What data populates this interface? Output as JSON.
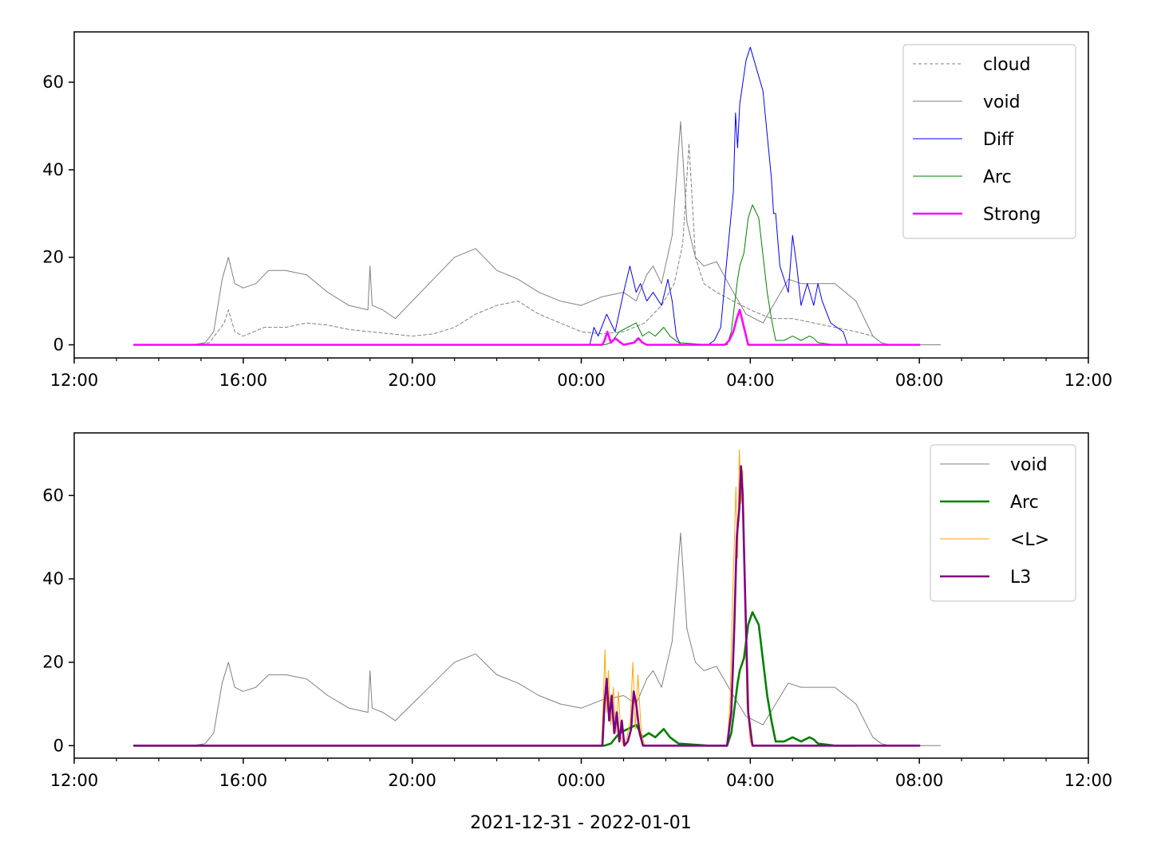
{
  "figure": {
    "xlabel": "2021-12-31 - 2022-01-01"
  },
  "chart_data": [
    {
      "type": "line",
      "title": "",
      "xlabel": "",
      "ylabel": "",
      "x_unit": "hours since 2021-12-31 12:00",
      "xlim": [
        0,
        24
      ],
      "ylim": [
        -3,
        71.5
      ],
      "x_ticks": [
        {
          "pos": 0,
          "label": "12:00"
        },
        {
          "pos": 4,
          "label": "16:00"
        },
        {
          "pos": 8,
          "label": "20:00"
        },
        {
          "pos": 12,
          "label": "00:00"
        },
        {
          "pos": 16,
          "label": "04:00"
        },
        {
          "pos": 20,
          "label": "08:00"
        },
        {
          "pos": 24,
          "label": "12:00"
        }
      ],
      "x_minor_ticks": [
        1,
        2,
        3,
        5,
        6,
        7,
        9,
        10,
        11,
        13,
        14,
        15,
        17,
        18,
        19,
        21,
        22,
        23
      ],
      "y_ticks": [
        0,
        20,
        40,
        60
      ],
      "grid": false,
      "legend_position": "top-right",
      "series": [
        {
          "name": "cloud",
          "color": "#808080",
          "width": 1.0,
          "dash": "4,3",
          "x": [
            1.42,
            2.9,
            3.2,
            3.55,
            3.65,
            3.8,
            4.0,
            4.5,
            5.0,
            5.5,
            6.0,
            6.5,
            7.0,
            7.5,
            8.0,
            8.5,
            9.0,
            9.5,
            10.0,
            10.5,
            11.0,
            11.5,
            12.0,
            12.5,
            13.0,
            13.5,
            13.9,
            14.2,
            14.4,
            14.55,
            14.7,
            14.9,
            15.2,
            15.6,
            16.0,
            16.5,
            17.0,
            17.5,
            18.0,
            18.5,
            18.9,
            19.1,
            19.3,
            19.5,
            20.0,
            20.5
          ],
          "y": [
            0,
            0,
            0.5,
            5,
            8,
            3,
            2,
            4,
            4,
            5,
            4.5,
            3.5,
            3,
            2.5,
            2,
            2.5,
            4,
            7,
            9,
            10,
            7,
            5,
            3,
            2.5,
            3,
            5,
            9,
            14,
            23,
            46,
            20,
            14,
            12,
            10,
            8,
            6,
            6,
            5,
            4,
            3,
            2,
            0.5,
            0,
            0,
            0,
            0
          ]
        },
        {
          "name": "void",
          "color": "#808080",
          "width": 1.0,
          "dash": "",
          "x": [
            1.42,
            2.8,
            3.1,
            3.3,
            3.5,
            3.65,
            3.8,
            4.0,
            4.3,
            4.6,
            5.0,
            5.5,
            6.0,
            6.5,
            6.95,
            7.0,
            7.05,
            7.3,
            7.6,
            8.0,
            8.5,
            9.0,
            9.5,
            10.0,
            10.5,
            11.0,
            11.5,
            12.0,
            12.5,
            13.0,
            13.3,
            13.55,
            13.7,
            13.9,
            14.15,
            14.35,
            14.5,
            14.7,
            14.9,
            15.2,
            15.6,
            15.9,
            16.3,
            16.6,
            16.9,
            17.2,
            17.6,
            18.0,
            18.5,
            18.9,
            19.1,
            19.3,
            19.5,
            20.0,
            20.5
          ],
          "y": [
            0,
            0,
            0.5,
            3,
            15,
            20,
            14,
            13,
            14,
            17,
            17,
            16,
            12,
            9,
            8,
            18,
            9,
            8,
            6,
            10,
            15,
            20,
            22,
            17,
            15,
            12,
            10,
            9,
            11,
            12,
            10,
            16,
            18,
            14,
            25,
            51,
            28,
            20,
            18,
            19,
            12,
            7,
            5,
            10,
            15,
            14,
            14,
            14,
            10,
            2,
            0.5,
            0,
            0,
            0,
            0
          ]
        },
        {
          "name": "Diff",
          "color": "#0000ff",
          "width": 1.0,
          "dash": "",
          "x": [
            1.42,
            12.2,
            12.3,
            12.4,
            12.6,
            12.8,
            13.0,
            13.15,
            13.3,
            13.4,
            13.55,
            13.7,
            13.9,
            14.05,
            14.15,
            14.25,
            14.35,
            14.5,
            15.0,
            15.15,
            15.3,
            15.45,
            15.6,
            15.65,
            15.7,
            15.75,
            15.9,
            16.0,
            16.3,
            16.5,
            16.55,
            16.6,
            16.7,
            16.9,
            17.0,
            17.1,
            17.2,
            17.35,
            17.5,
            17.6,
            17.7,
            17.9,
            18.2,
            18.3,
            19.0,
            19.5,
            20.0
          ],
          "y": [
            0,
            0,
            4,
            2,
            7,
            3,
            12,
            18,
            12,
            14,
            10,
            12,
            9,
            15,
            10,
            2,
            0,
            0,
            0,
            1,
            4,
            20,
            35,
            53,
            45,
            55,
            65,
            68,
            58,
            38,
            30,
            30,
            18,
            12,
            25,
            18,
            9,
            14,
            9,
            14,
            10,
            5,
            3,
            0,
            0,
            0,
            0
          ]
        },
        {
          "name": "Arc",
          "color": "#008000",
          "width": 1.0,
          "dash": "",
          "x": [
            1.42,
            12.55,
            12.7,
            12.9,
            13.1,
            13.3,
            13.45,
            13.6,
            13.75,
            13.95,
            14.1,
            14.3,
            15.0,
            15.45,
            15.55,
            15.65,
            15.7,
            15.75,
            15.85,
            15.95,
            16.05,
            16.2,
            16.4,
            16.5,
            16.6,
            16.8,
            17.0,
            17.2,
            17.4,
            17.5,
            17.6,
            18.0,
            18.5
          ],
          "y": [
            0,
            0,
            0.5,
            3,
            4,
            5,
            2,
            3,
            2,
            4,
            2,
            0.5,
            0,
            0,
            3,
            11,
            15,
            18,
            21,
            29,
            32,
            29,
            12,
            6,
            1,
            1,
            2,
            1,
            2,
            1.5,
            0.5,
            0,
            0
          ]
        },
        {
          "name": "Strong",
          "color": "#ff00ff",
          "width": 2.6,
          "dash": "",
          "x": [
            1.42,
            12.5,
            12.55,
            12.62,
            12.7,
            12.8,
            13.0,
            13.25,
            13.35,
            13.45,
            13.55,
            15.4,
            15.5,
            15.6,
            15.68,
            15.75,
            15.85,
            15.95,
            20.0
          ],
          "y": [
            0,
            0,
            1,
            3,
            0.5,
            1.5,
            0,
            0.5,
            1.5,
            0.5,
            0,
            0,
            1,
            3,
            6,
            8,
            4,
            0,
            0
          ]
        }
      ]
    },
    {
      "type": "line",
      "title": "",
      "xlabel": "2021-12-31 - 2022-01-01",
      "ylabel": "",
      "x_unit": "hours since 2021-12-31 12:00",
      "xlim": [
        0,
        24
      ],
      "ylim": [
        -3,
        75
      ],
      "x_ticks": [
        {
          "pos": 0,
          "label": "12:00"
        },
        {
          "pos": 4,
          "label": "16:00"
        },
        {
          "pos": 8,
          "label": "20:00"
        },
        {
          "pos": 12,
          "label": "00:00"
        },
        {
          "pos": 16,
          "label": "04:00"
        },
        {
          "pos": 20,
          "label": "08:00"
        },
        {
          "pos": 24,
          "label": "12:00"
        }
      ],
      "x_minor_ticks": [
        1,
        2,
        3,
        5,
        6,
        7,
        9,
        10,
        11,
        13,
        14,
        15,
        17,
        18,
        19,
        21,
        22,
        23
      ],
      "y_ticks": [
        0,
        20,
        40,
        60
      ],
      "grid": false,
      "legend_position": "top-right",
      "series": [
        {
          "name": "void",
          "color": "#808080",
          "width": 1.0,
          "dash": "",
          "x": [
            1.42,
            2.8,
            3.1,
            3.3,
            3.5,
            3.65,
            3.8,
            4.0,
            4.3,
            4.6,
            5.0,
            5.5,
            6.0,
            6.5,
            6.95,
            7.0,
            7.05,
            7.3,
            7.6,
            8.0,
            8.5,
            9.0,
            9.5,
            10.0,
            10.5,
            11.0,
            11.5,
            12.0,
            12.5,
            13.0,
            13.3,
            13.55,
            13.7,
            13.9,
            14.15,
            14.35,
            14.5,
            14.7,
            14.9,
            15.2,
            15.6,
            15.9,
            16.3,
            16.6,
            16.9,
            17.2,
            17.6,
            18.0,
            18.5,
            18.9,
            19.1,
            19.3,
            19.5,
            20.0,
            20.5
          ],
          "y": [
            0,
            0,
            0.5,
            3,
            15,
            20,
            14,
            13,
            14,
            17,
            17,
            16,
            12,
            9,
            8,
            18,
            9,
            8,
            6,
            10,
            15,
            20,
            22,
            17,
            15,
            12,
            10,
            9,
            11,
            12,
            10,
            16,
            18,
            14,
            25,
            51,
            28,
            20,
            18,
            19,
            12,
            7,
            5,
            10,
            15,
            14,
            14,
            14,
            10,
            2,
            0.5,
            0,
            0,
            0,
            0
          ]
        },
        {
          "name": "Arc",
          "color": "#008000",
          "width": 2.6,
          "dash": "",
          "x": [
            1.42,
            12.55,
            12.7,
            12.9,
            13.1,
            13.3,
            13.45,
            13.6,
            13.75,
            13.95,
            14.1,
            14.3,
            15.0,
            15.45,
            15.55,
            15.65,
            15.7,
            15.75,
            15.85,
            15.95,
            16.05,
            16.2,
            16.4,
            16.5,
            16.6,
            16.8,
            17.0,
            17.2,
            17.4,
            17.5,
            17.6,
            18.0,
            18.5
          ],
          "y": [
            0,
            0,
            0.5,
            3,
            4,
            5,
            2,
            3,
            2,
            4,
            2,
            0.5,
            0,
            0,
            3,
            11,
            15,
            18,
            21,
            29,
            32,
            29,
            12,
            6,
            1,
            1,
            2,
            1,
            2,
            1.5,
            0.5,
            0,
            0
          ]
        },
        {
          "name": "<L>",
          "color": "#ffa500",
          "width": 1.0,
          "dash": "",
          "x": [
            1.42,
            12.48,
            12.52,
            12.56,
            12.6,
            12.64,
            12.7,
            12.76,
            12.82,
            12.88,
            12.94,
            13.0,
            13.08,
            13.16,
            13.22,
            13.28,
            13.34,
            13.42,
            13.5,
            15.45,
            15.52,
            15.58,
            15.62,
            15.66,
            15.7,
            15.74,
            15.78,
            15.82,
            15.86,
            15.92,
            16.0,
            16.1,
            20.0
          ],
          "y": [
            0,
            0,
            10,
            23,
            8,
            18,
            5,
            14,
            3,
            13,
            2,
            0,
            2,
            6,
            20,
            4,
            17,
            3,
            0,
            0,
            10,
            35,
            48,
            62,
            45,
            71,
            58,
            66,
            40,
            10,
            1,
            0,
            0
          ]
        },
        {
          "name": "L3",
          "color": "#800080",
          "width": 2.6,
          "dash": "",
          "x": [
            1.42,
            12.5,
            12.55,
            12.6,
            12.66,
            12.72,
            12.78,
            12.84,
            12.9,
            12.96,
            13.02,
            13.1,
            13.18,
            13.24,
            13.3,
            13.38,
            13.46,
            15.45,
            15.55,
            15.62,
            15.68,
            15.74,
            15.78,
            15.82,
            15.88,
            15.95,
            16.05,
            20.0
          ],
          "y": [
            0,
            0,
            10,
            16,
            6,
            12,
            3,
            8,
            1,
            6,
            0,
            1,
            4,
            13,
            10,
            3,
            0,
            0,
            8,
            28,
            50,
            57,
            67,
            60,
            35,
            8,
            0,
            0
          ]
        }
      ]
    }
  ]
}
